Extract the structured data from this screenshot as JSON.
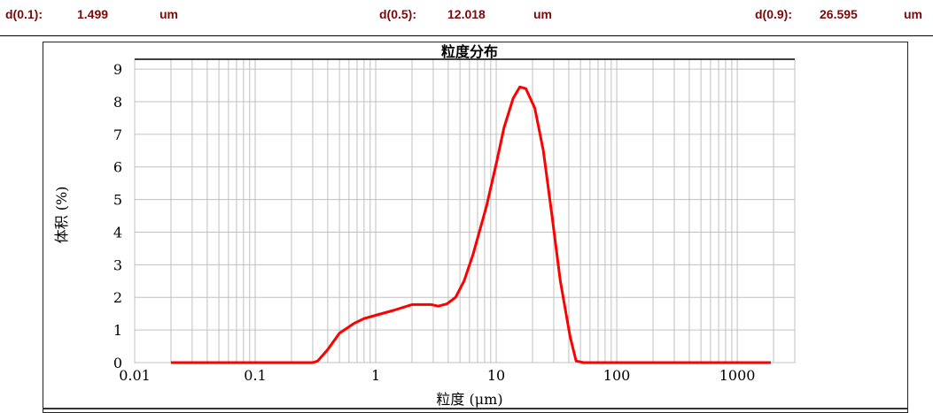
{
  "header": [
    {
      "label": "d(0.1):",
      "value": "1.499",
      "unit": "um"
    },
    {
      "label": "d(0.5):",
      "value": "12.018",
      "unit": "um"
    },
    {
      "label": "d(0.9):",
      "value": "26.595",
      "unit": "um"
    }
  ],
  "chart_data": {
    "type": "line",
    "title": "粒度分布",
    "xlabel": "粒度 (μm)",
    "ylabel": "体积 (%)",
    "xscale": "log",
    "xlim": [
      0.01,
      3000
    ],
    "ylim": [
      0,
      9.3
    ],
    "xticks": [
      "0.01",
      "0.1",
      "1",
      "10",
      "100",
      "1000"
    ],
    "yticks": [
      "0",
      "1",
      "2",
      "3",
      "4",
      "5",
      "6",
      "7",
      "8",
      "9"
    ],
    "grid": true,
    "color": "#ff0000",
    "x": [
      0.02,
      0.05,
      0.1,
      0.2,
      0.3,
      0.33,
      0.4,
      0.5,
      0.66,
      0.8,
      1,
      1.4,
      2,
      2.9,
      3.3,
      3.9,
      4.6,
      5.4,
      6.4,
      8.3,
      10,
      11.6,
      13.8,
      15.7,
      17.6,
      20.9,
      24.6,
      29,
      34,
      41,
      46,
      53,
      100,
      500,
      1900
    ],
    "y": [
      0,
      0,
      0,
      0,
      0,
      0.05,
      0.4,
      0.9,
      1.2,
      1.35,
      1.45,
      1.6,
      1.78,
      1.78,
      1.73,
      1.8,
      2.0,
      2.5,
      3.3,
      4.8,
      6.1,
      7.2,
      8.1,
      8.45,
      8.4,
      7.8,
      6.5,
      4.5,
      2.5,
      0.8,
      0.05,
      0,
      0,
      0,
      0
    ]
  }
}
